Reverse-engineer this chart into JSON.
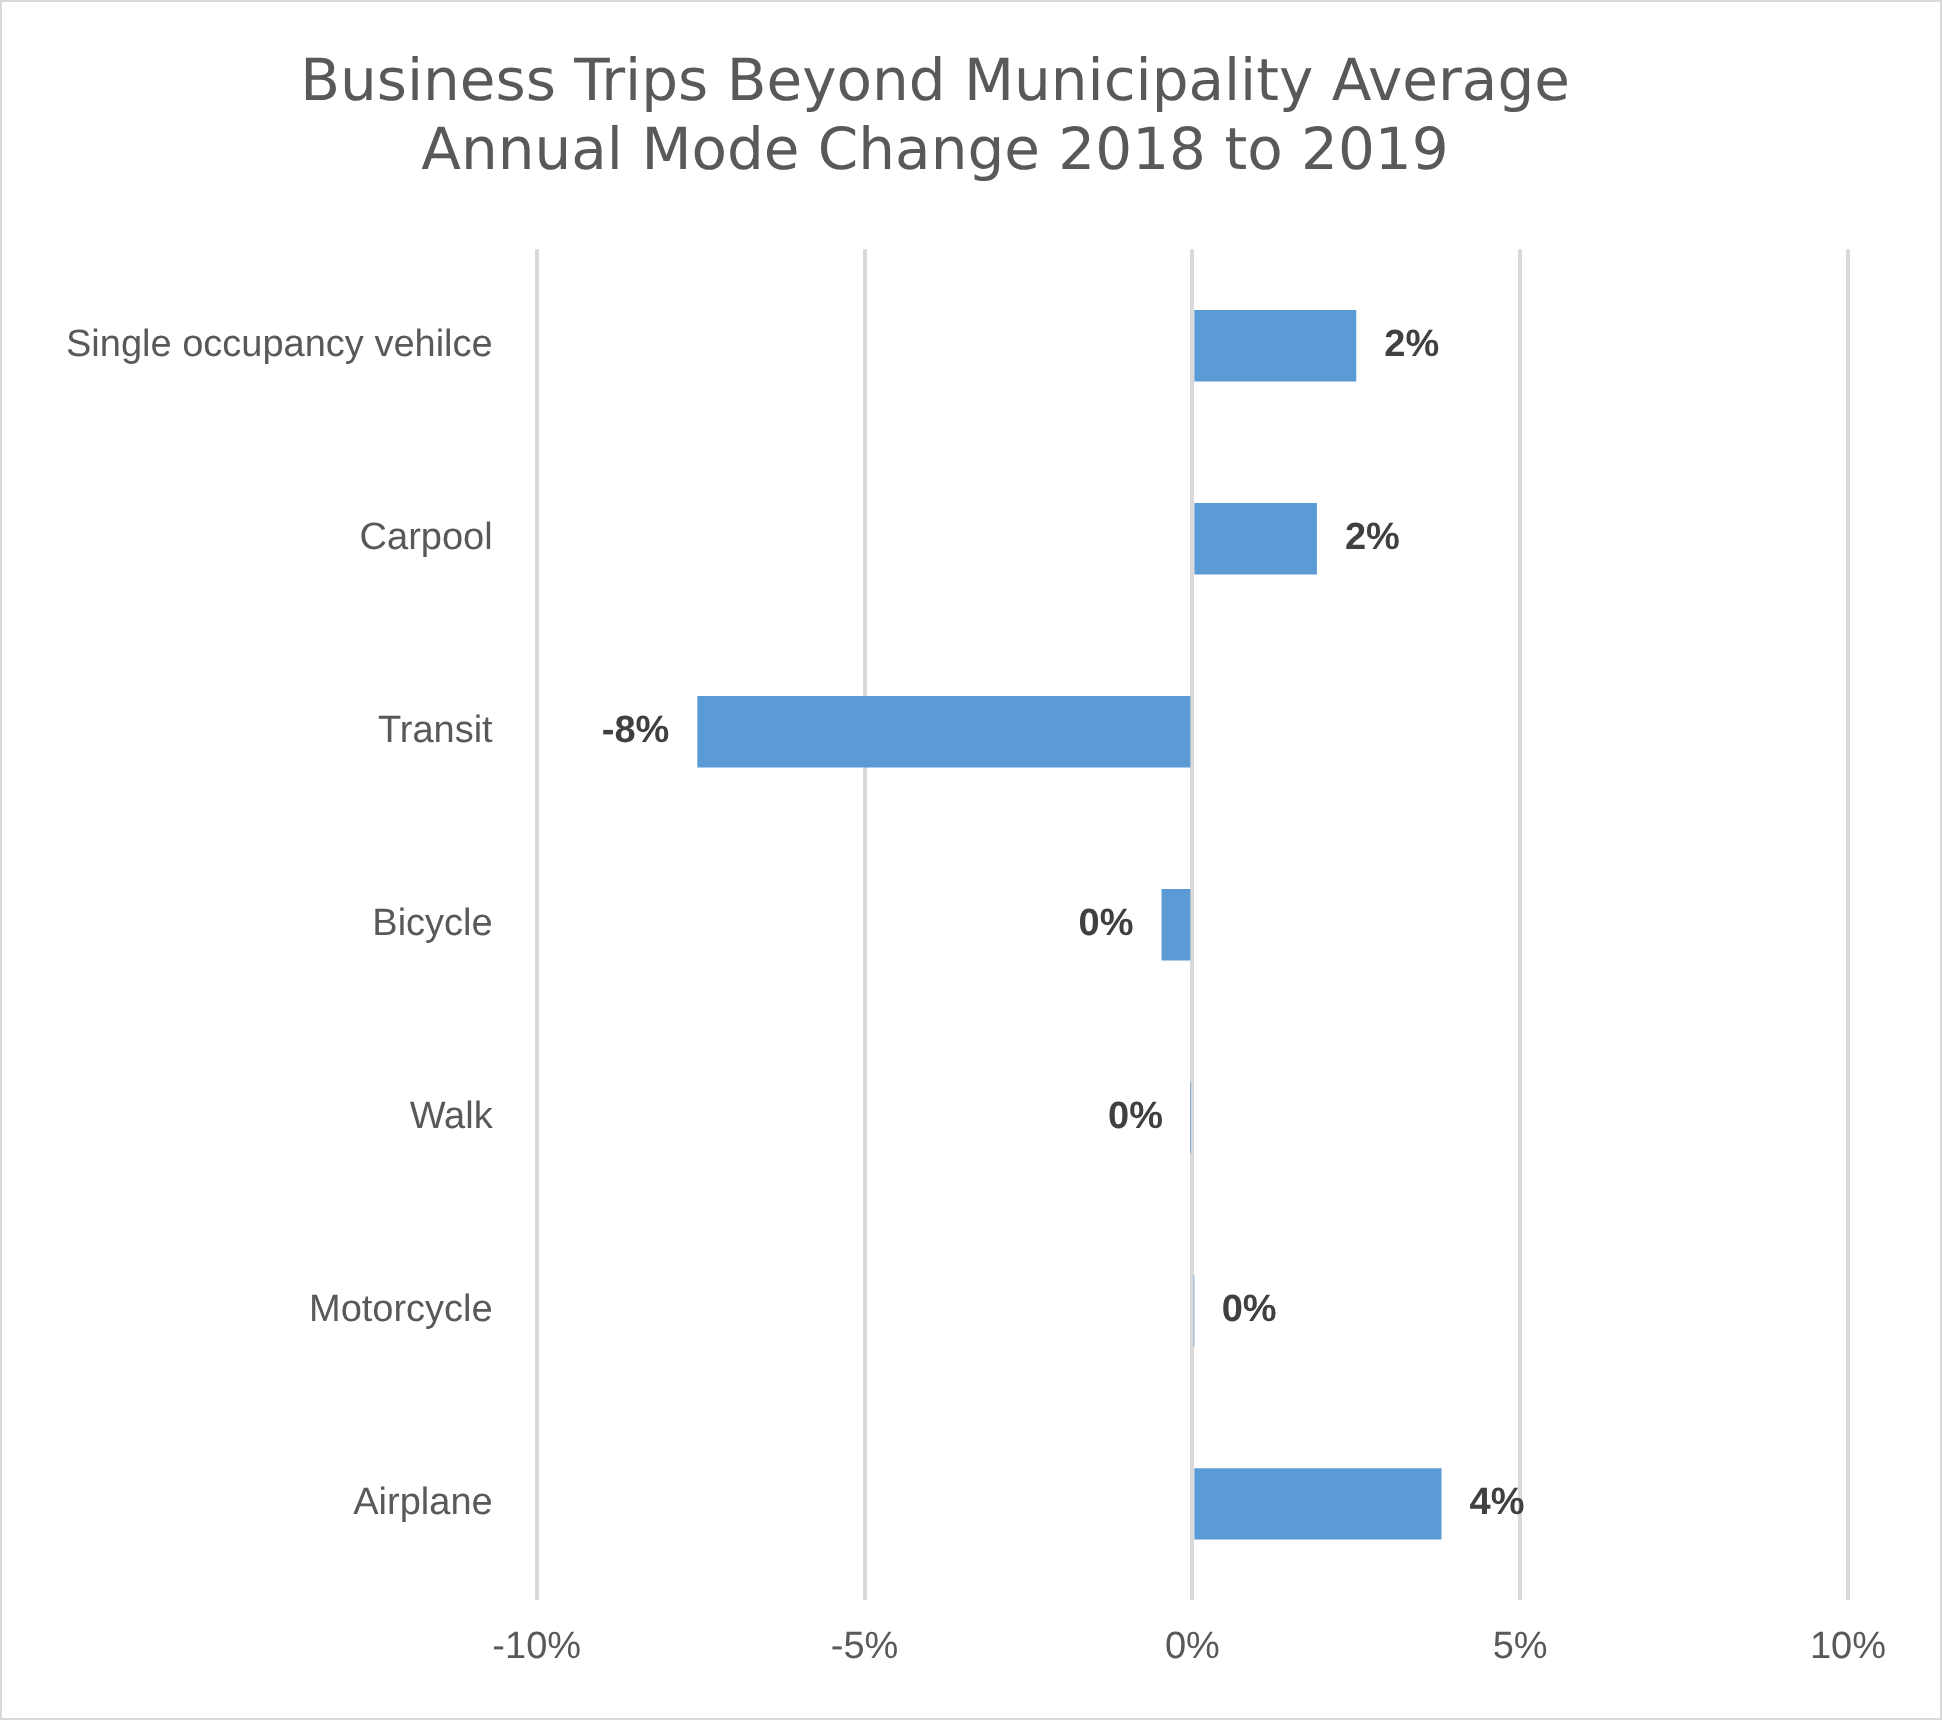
{
  "chart_data": {
    "type": "bar",
    "orientation": "horizontal",
    "title": [
      "Business Trips Beyond Municipality Average",
      "Annual Mode Change 2018 to 2019"
    ],
    "categories": [
      "Single occupancy vehilce",
      "Carpool",
      "Transit",
      "Bicycle",
      "Walk",
      "Motorcycle",
      "Airplane"
    ],
    "values": [
      2.5,
      1.9,
      -7.55,
      -0.47,
      -0.02,
      0.02,
      3.8
    ],
    "value_labels": [
      "2%",
      "2%",
      "-8%",
      "0%",
      "0%",
      "0%",
      "4%"
    ],
    "color": "#5b9bd5",
    "xlim": [
      -10,
      10
    ],
    "xticks": [
      {
        "value": -10,
        "label": "-10%"
      },
      {
        "value": -5,
        "label": "-5%"
      },
      {
        "value": 0,
        "label": "0%"
      },
      {
        "value": 5,
        "label": "5%"
      },
      {
        "value": 10,
        "label": "10%"
      }
    ],
    "grid": "x",
    "legend": false
  }
}
